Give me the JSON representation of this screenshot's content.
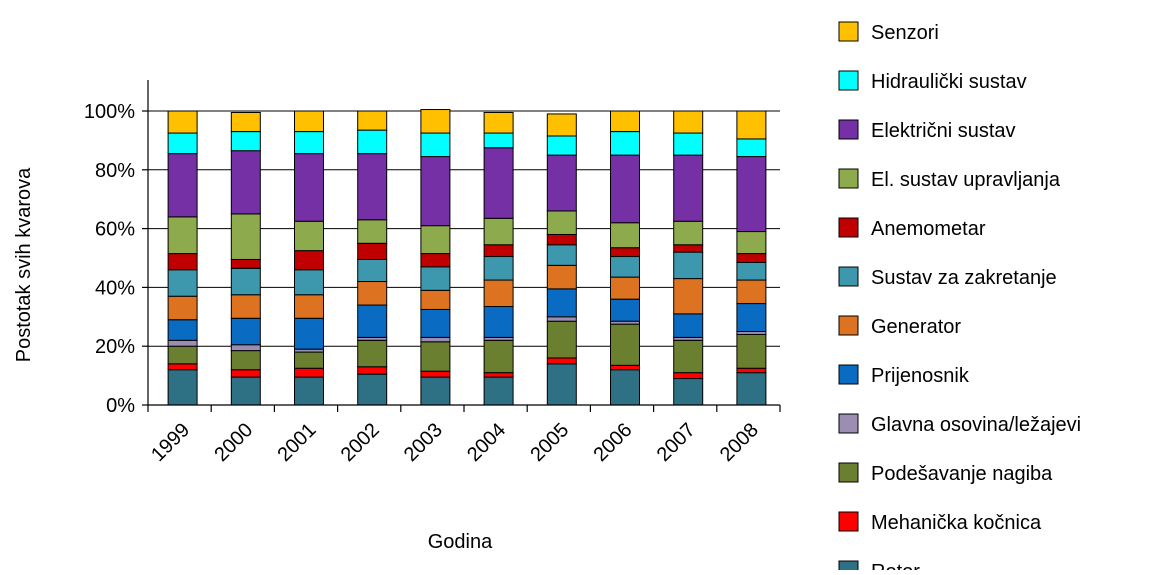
{
  "chart_data": {
    "type": "bar",
    "stacked": true,
    "normalized": true,
    "xlabel": "Godina",
    "ylabel": "Postotak svih kvarova",
    "ylim": [
      0,
      100
    ],
    "y_ticks": [
      "0%",
      "20%",
      "40%",
      "60%",
      "80%",
      "100%"
    ],
    "legend_position": "right",
    "categories": [
      "1999",
      "2000",
      "2001",
      "2002",
      "2003",
      "2004",
      "2005",
      "2006",
      "2007",
      "2008"
    ],
    "series": [
      {
        "name": "Rotor",
        "color": "#2E7185",
        "values": [
          12,
          9.5,
          9.5,
          10.5,
          9.5,
          9.5,
          14,
          12,
          9,
          11
        ]
      },
      {
        "name": "Mehanička kočnica",
        "color": "#FF0000",
        "values": [
          2,
          2.5,
          3,
          2.5,
          2,
          1.5,
          2,
          1.5,
          2,
          1.5
        ]
      },
      {
        "name": "Podešavanje nagiba",
        "color": "#6B7F31",
        "values": [
          6,
          6.5,
          5.5,
          9,
          10,
          11,
          12.5,
          14,
          11,
          11.5
        ]
      },
      {
        "name": "Glavna osovina/ležajevi",
        "color": "#9B8EB2",
        "values": [
          2,
          2,
          1,
          1,
          1.5,
          1,
          1.5,
          1,
          1,
          1
        ]
      },
      {
        "name": "Prijenosnik",
        "color": "#0A6BC2",
        "values": [
          7,
          9,
          10.5,
          11,
          9.5,
          10.5,
          9.5,
          7.5,
          8,
          9.5
        ]
      },
      {
        "name": "Generator",
        "color": "#DD7221",
        "values": [
          8,
          8,
          8,
          8,
          6.5,
          9,
          8,
          7.5,
          12,
          8
        ]
      },
      {
        "name": "Sustav za zakretanje",
        "color": "#3D97AD",
        "values": [
          9,
          9,
          8.5,
          7.5,
          8,
          8,
          7,
          7,
          9,
          6
        ]
      },
      {
        "name": "Anemometar",
        "color": "#C00000",
        "values": [
          5.5,
          3,
          6.5,
          5.5,
          4.5,
          4,
          3.5,
          3,
          2.5,
          3
        ]
      },
      {
        "name": "El. sustav upravljanja",
        "color": "#8DAA4C",
        "values": [
          12.5,
          15.5,
          10,
          8,
          9.5,
          9,
          8,
          8.5,
          8,
          7.5
        ]
      },
      {
        "name": "Električni sustav",
        "color": "#7530A5",
        "values": [
          21.5,
          21.5,
          23,
          22.5,
          23.5,
          24,
          19,
          23,
          22.5,
          25.5
        ]
      },
      {
        "name": "Hidraulički sustav",
        "color": "#00FFFF",
        "values": [
          7,
          6.5,
          7.5,
          8,
          8,
          5,
          6.5,
          8,
          7.5,
          6
        ]
      },
      {
        "name": "Senzori",
        "color": "#FFC000",
        "values": [
          7.5,
          6.5,
          7,
          6.5,
          8,
          7,
          7.5,
          7,
          7.5,
          9.5
        ]
      }
    ]
  }
}
